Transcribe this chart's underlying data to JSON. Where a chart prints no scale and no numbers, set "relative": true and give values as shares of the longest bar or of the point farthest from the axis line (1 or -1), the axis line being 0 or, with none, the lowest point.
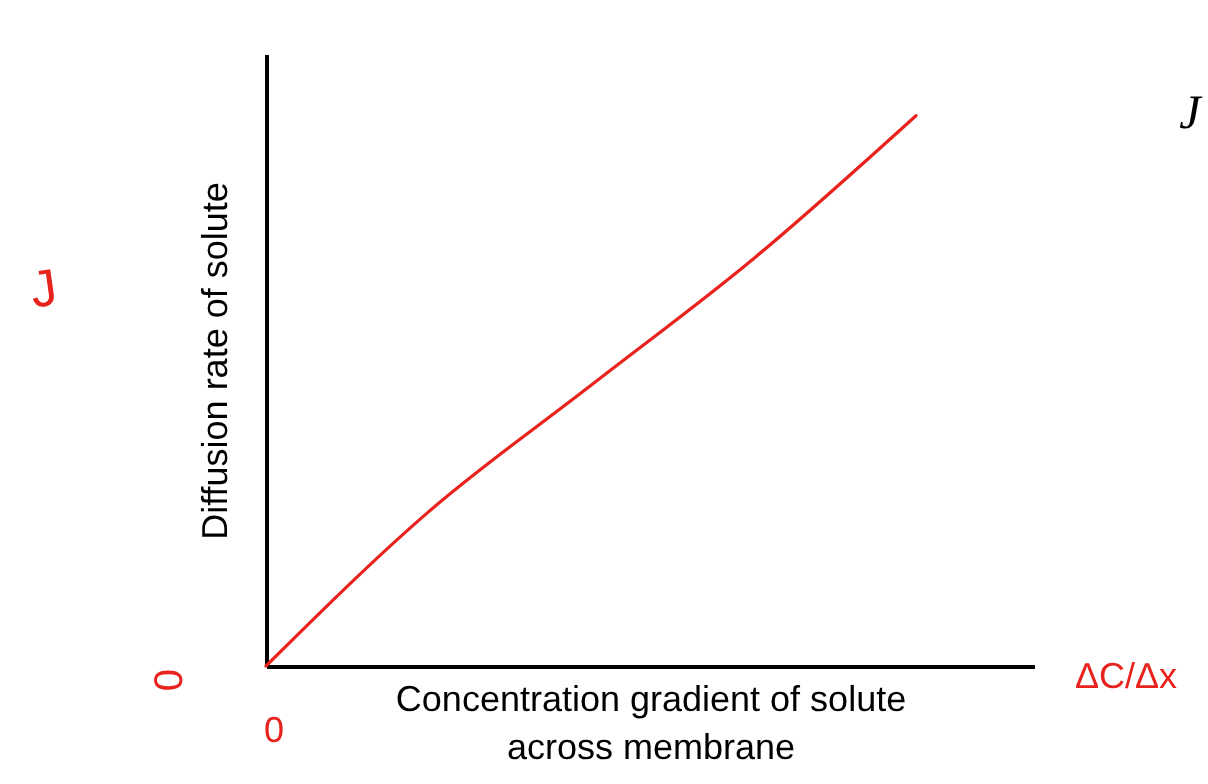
{
  "chart_data": {
    "type": "line",
    "relative": true,
    "xlabel": "Concentration gradient of solute across membrane",
    "ylabel": "Diffusion rate of solute",
    "categories": [
      null,
      null,
      null,
      null,
      null
    ],
    "series": [
      {
        "color": "#e8221c",
        "values": [
          0,
          0.28,
          0.51,
          0.74,
          1
        ]
      }
    ],
    "annotations": [
      "J",
      "0",
      "0",
      "ΔC/Δx",
      "J"
    ],
    "grid": false,
    "legend": false,
    "marker": "none",
    "line_style": "solid"
  }
}
